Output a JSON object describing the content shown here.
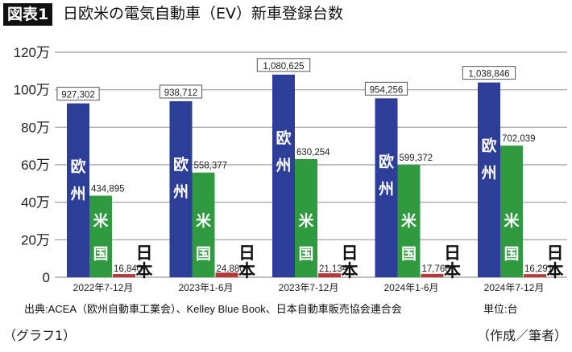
{
  "header": {
    "badge": "図表1",
    "title": "日欧米の電気自動車（EV）新車登録台数"
  },
  "chart_data": {
    "type": "bar",
    "title": "日欧米の電気自動車（EV）新車登録台数",
    "categories": [
      "2022年7-12月",
      "2023年1-6月",
      "2023年7-12月",
      "2024年1-6月",
      "2024年7-12月"
    ],
    "series": [
      {
        "name": "欧州",
        "values": [
          927302,
          938712,
          1080625,
          954256,
          1038846
        ],
        "color": "#2d3e98",
        "labels": [
          "927,302",
          "938,712",
          "1,080,625",
          "954,256",
          "1,038,846"
        ]
      },
      {
        "name": "米国",
        "values": [
          434895,
          558377,
          630254,
          599372,
          702039
        ],
        "color": "#2f9a3f",
        "labels": [
          "434,895",
          "558,377",
          "630,254",
          "599,372",
          "702,039"
        ]
      },
      {
        "name": "日本",
        "values": [
          16840,
          24880,
          21134,
          17766,
          16291
        ],
        "color": "#b63838",
        "labels": [
          "16,840",
          "24,880",
          "21,134",
          "17,766",
          "16,291"
        ]
      }
    ],
    "yticks": [
      "0",
      "20万",
      "40万",
      "60万",
      "80万",
      "100万",
      "120万"
    ],
    "ylim": [
      0,
      1200000
    ],
    "grid": true
  },
  "footer": {
    "source": "出典:ACEA（欧州自動車工業会）、Kelley Blue Book、日本自動車販売協会連合会",
    "unit": "単位:台",
    "left_note": "（グラフ1）",
    "right_note": "（作成／筆者）"
  }
}
